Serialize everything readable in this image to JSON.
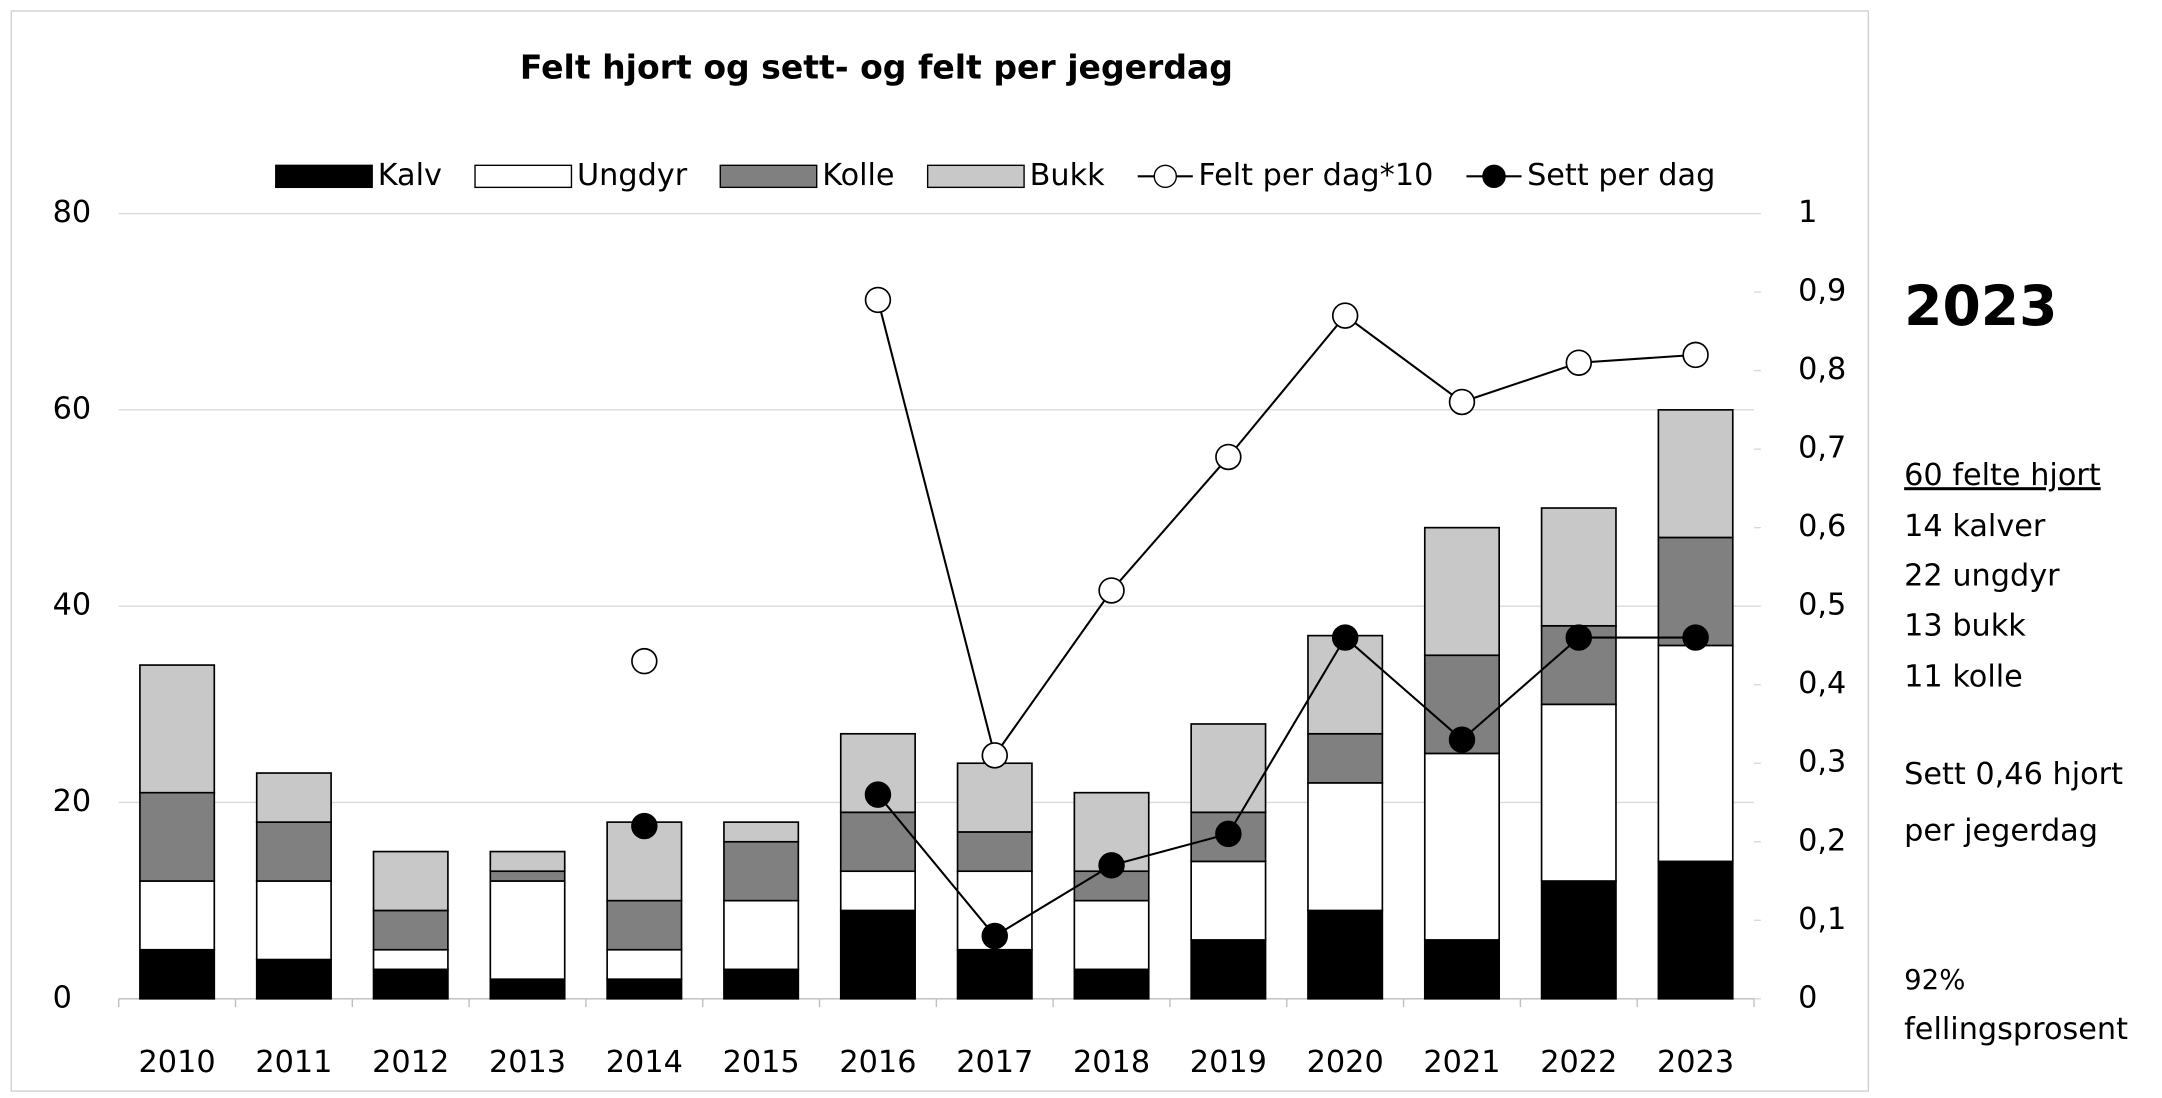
{
  "chart_data": {
    "type": "bar",
    "stacked": true,
    "title": "Felt hjort og sett- og felt per jegerdag",
    "categories": [
      "2010",
      "2011",
      "2012",
      "2013",
      "2014",
      "2015",
      "2016",
      "2017",
      "2018",
      "2019",
      "2020",
      "2021",
      "2022",
      "2023"
    ],
    "series": [
      {
        "name": "Kalv",
        "color": "#000000",
        "values": [
          5,
          4,
          3,
          2,
          2,
          3,
          9,
          5,
          3,
          6,
          9,
          6,
          12,
          14
        ]
      },
      {
        "name": "Ungdyr",
        "color": "#ffffff",
        "values": [
          7,
          8,
          2,
          10,
          3,
          7,
          4,
          8,
          7,
          8,
          13,
          19,
          18,
          22
        ]
      },
      {
        "name": "Kolle",
        "color": "#808080",
        "values": [
          9,
          6,
          4,
          1,
          5,
          6,
          6,
          4,
          3,
          5,
          5,
          10,
          8,
          11
        ]
      },
      {
        "name": "Bukk",
        "color": "#c8c8c8",
        "values": [
          13,
          5,
          6,
          2,
          8,
          2,
          8,
          7,
          8,
          9,
          10,
          13,
          12,
          13
        ]
      },
      {
        "name": "Felt per dag*10",
        "type": "line",
        "axis": "y2",
        "color": "#000000",
        "marker_fill": "#ffffff",
        "values": [
          null,
          null,
          null,
          null,
          0.43,
          null,
          0.89,
          0.31,
          0.52,
          0.69,
          0.87,
          0.76,
          0.81,
          0.82
        ]
      },
      {
        "name": "Sett per dag",
        "type": "line",
        "axis": "y2",
        "color": "#000000",
        "marker_fill": "#000000",
        "values": [
          null,
          null,
          null,
          null,
          0.22,
          null,
          0.26,
          0.08,
          0.17,
          0.21,
          0.46,
          0.33,
          0.46,
          0.46
        ]
      }
    ],
    "ylim": [
      0,
      80
    ],
    "yticks": [
      0,
      20,
      40,
      60,
      80
    ],
    "y2lim": [
      0,
      1
    ],
    "y2ticks": [
      0,
      {
        "value": 0.1,
        "label": "0,1"
      },
      {
        "value": 0.2,
        "label": "0,2"
      },
      {
        "value": 0.3,
        "label": "0,3"
      },
      {
        "value": 0.4,
        "label": "0,4"
      },
      {
        "value": 0.5,
        "label": "0,5"
      },
      {
        "value": 0.6,
        "label": "0,6"
      },
      {
        "value": 0.7,
        "label": "0,7"
      },
      {
        "value": 0.8,
        "label": "0,8"
      },
      {
        "value": 0.9,
        "label": "0,9"
      },
      1
    ],
    "grid": true,
    "legend": "top"
  },
  "side_panel": {
    "year": "2023",
    "heading": "60 felte hjort",
    "lines": [
      "14 kalver",
      "22 ungdyr",
      "13 bukk",
      "11 kolle"
    ],
    "seen": [
      "Sett 0,46 hjort",
      "per jegerdag"
    ],
    "rate": [
      "92%",
      "fellingsprosent"
    ]
  }
}
